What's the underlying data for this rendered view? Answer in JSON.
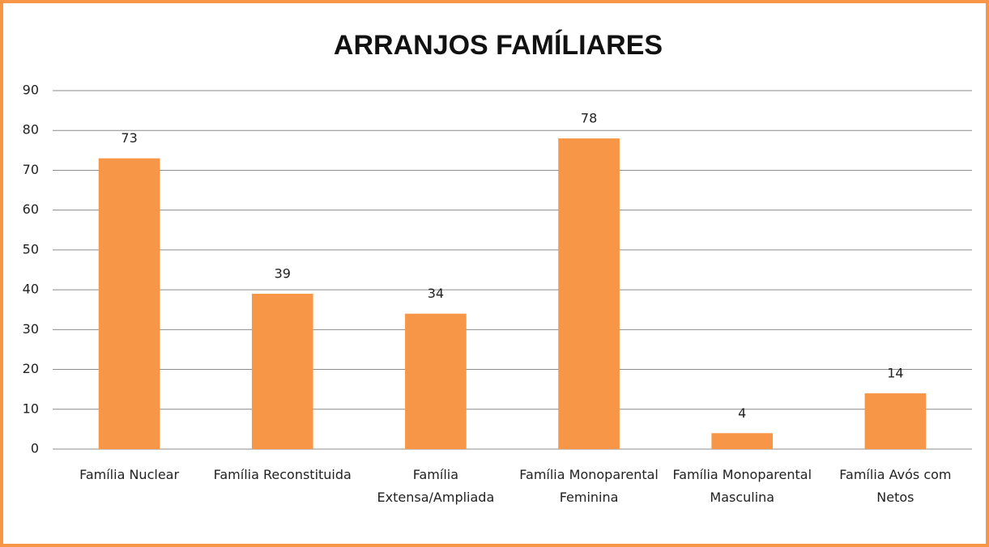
{
  "chart_data": {
    "type": "bar",
    "title": "ARRANJOS FAMÍLIARES",
    "categories": [
      "Família Nuclear",
      "Família Reconstituida",
      "Família Extensa/Ampliada",
      "Família Monoparental Feminina",
      "Família Monoparental Masculina",
      "Família Avós com Netos"
    ],
    "values": [
      73,
      39,
      34,
      78,
      4,
      14
    ],
    "color": "#f79646",
    "ylim": [
      0,
      90
    ],
    "yticks": [
      0,
      10,
      20,
      30,
      40,
      50,
      60,
      70,
      80,
      90
    ],
    "grid": true
  }
}
